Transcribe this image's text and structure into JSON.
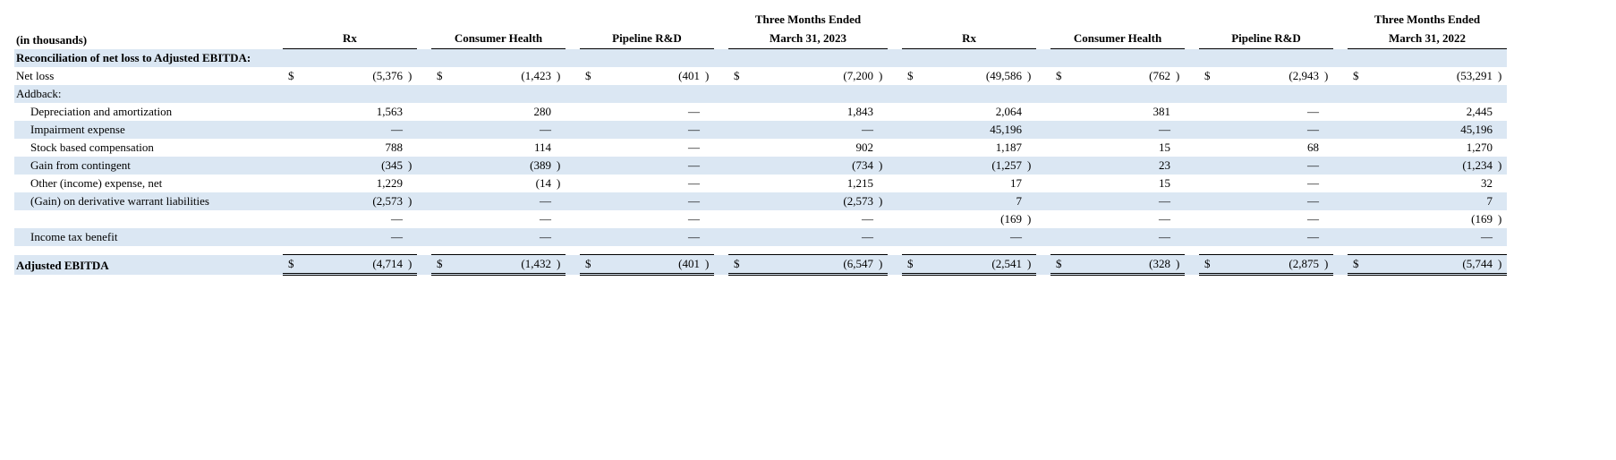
{
  "meta": {
    "units_label": "(in thousands)",
    "section_title": "Reconciliation of net loss to Adjusted EBITDA:",
    "addback_label": "Addback:",
    "total_label": "Adjusted EBITDA",
    "currency": "$",
    "dash": "—",
    "shade_color": "#dbe7f3",
    "font_family": "Times New Roman",
    "font_size_pt": 10
  },
  "columns": [
    {
      "key": "rx23",
      "label": "Rx"
    },
    {
      "key": "ch23",
      "label": "Consumer Health"
    },
    {
      "key": "pr23",
      "label": "Pipeline R&D"
    },
    {
      "key": "tot23",
      "label": "Three Months Ended March 31, 2023",
      "super": "Three Months Ended",
      "sub": "March 31, 2023"
    },
    {
      "key": "rx22",
      "label": "Rx"
    },
    {
      "key": "ch22",
      "label": "Consumer Health"
    },
    {
      "key": "pr22",
      "label": "Pipeline R&D"
    },
    {
      "key": "tot22",
      "label": "Three Months Ended March 31, 2022",
      "super": "Three Months Ended",
      "sub": "March 31, 2022"
    }
  ],
  "rows": [
    {
      "key": "net_loss",
      "label": "Net loss",
      "shaded": false,
      "show_currency": true,
      "values": {
        "rx23": "(5,376)",
        "ch23": "(1,423)",
        "pr23": "(401)",
        "tot23": "(7,200)",
        "rx22": "(49,586)",
        "ch22": "(762)",
        "pr22": "(2,943)",
        "tot22": "(53,291)"
      }
    },
    {
      "key": "dep_amort",
      "label": "Depreciation and amortization",
      "indent": true,
      "shaded": false,
      "values": {
        "rx23": "1,563",
        "ch23": "280",
        "pr23": "—",
        "tot23": "1,843",
        "rx22": "2,064",
        "ch22": "381",
        "pr22": "—",
        "tot22": "2,445"
      }
    },
    {
      "key": "impairment",
      "label": "Impairment expense",
      "indent": true,
      "shaded": true,
      "values": {
        "rx23": "—",
        "ch23": "—",
        "pr23": "—",
        "tot23": "—",
        "rx22": "45,196",
        "ch22": "—",
        "pr22": "—",
        "tot22": "45,196"
      }
    },
    {
      "key": "sbc",
      "label": "Stock based compensation",
      "indent": true,
      "shaded": false,
      "values": {
        "rx23": "788",
        "ch23": "114",
        "pr23": "—",
        "tot23": "902",
        "rx22": "1,187",
        "ch22": "15",
        "pr22": "68",
        "tot22": "1,270"
      }
    },
    {
      "key": "gain_contingent",
      "label": "Gain from contingent",
      "indent": true,
      "shaded": true,
      "values": {
        "rx23": "(345)",
        "ch23": "(389)",
        "pr23": "—",
        "tot23": "(734)",
        "rx22": "(1,257)",
        "ch22": "23",
        "pr22": "—",
        "tot22": "(1,234)"
      }
    },
    {
      "key": "other_income",
      "label": "Other (income) expense, net",
      "indent": true,
      "shaded": false,
      "values": {
        "rx23": "1,229",
        "ch23": "(14)",
        "pr23": "—",
        "tot23": "1,215",
        "rx22": "17",
        "ch22": "15",
        "pr22": "—",
        "tot22": "32"
      }
    },
    {
      "key": "deriv",
      "label": "(Gain) on derivative warrant liabilities",
      "indent": true,
      "shaded": true,
      "values": {
        "rx23": "(2,573)",
        "ch23": "—",
        "pr23": "—",
        "tot23": "(2,573)",
        "rx22": "7",
        "ch22": "—",
        "pr22": "—",
        "tot22": "7"
      }
    },
    {
      "key": "blank_row",
      "label": "",
      "indent": true,
      "shaded": false,
      "values": {
        "rx23": "—",
        "ch23": "—",
        "pr23": "—",
        "tot23": "—",
        "rx22": "(169)",
        "ch22": "—",
        "pr22": "—",
        "tot22": "(169)"
      }
    },
    {
      "key": "tax_benefit",
      "label": "Income tax benefit",
      "indent": true,
      "shaded": true,
      "values": {
        "rx23": "—",
        "ch23": "—",
        "pr23": "—",
        "tot23": "—",
        "rx22": "—",
        "ch22": "—",
        "pr22": "—",
        "tot22": "—"
      }
    }
  ],
  "total": {
    "label": "Adjusted EBITDA",
    "shaded": true,
    "show_currency": true,
    "values": {
      "rx23": "(4,714)",
      "ch23": "(1,432)",
      "pr23": "(401)",
      "tot23": "(6,547)",
      "rx22": "(2,541)",
      "ch22": "(328)",
      "pr22": "(2,875)",
      "tot22": "(5,744)"
    }
  }
}
